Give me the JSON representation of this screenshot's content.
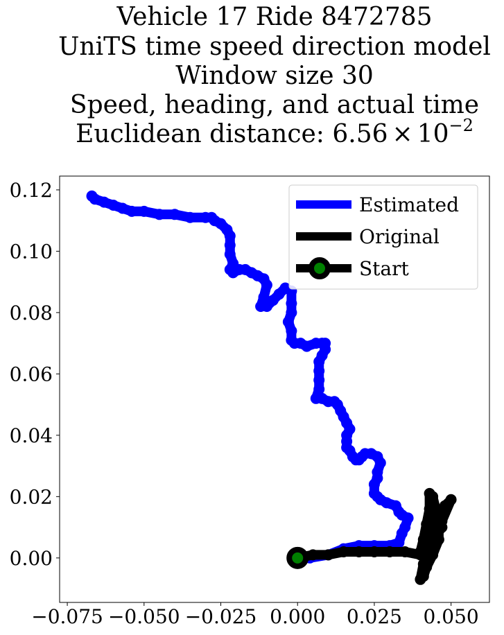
{
  "chart_data": {
    "type": "line",
    "title_lines": [
      "Vehicle 17 Ride 8472785",
      "UniTS time speed direction model",
      "Window size 30",
      "Speed, heading, and actual time"
    ],
    "title_distance_prefix": "Euclidean distance: ",
    "title_distance_mantissa": "6.56",
    "title_distance_times": "×",
    "title_distance_base": "10",
    "title_distance_exponent": "−2",
    "xlim": [
      -0.0775,
      0.0625
    ],
    "ylim": [
      -0.0145,
      0.1245
    ],
    "x_ticks": [
      -0.075,
      -0.05,
      -0.025,
      0.0,
      0.025,
      0.05
    ],
    "x_tick_labels": [
      "−0.075",
      "−0.050",
      "−0.025",
      "0.000",
      "0.025",
      "0.050"
    ],
    "y_ticks": [
      0.0,
      0.02,
      0.04,
      0.06,
      0.08,
      0.1,
      0.12
    ],
    "y_tick_labels": [
      "0.00",
      "0.02",
      "0.04",
      "0.06",
      "0.08",
      "0.10",
      "0.12"
    ],
    "grid": false,
    "legend_position": "top-right",
    "colors": {
      "estimated": "#0000ff",
      "original": "#000000",
      "start_marker": "#000000",
      "start_face": "#008000"
    },
    "series": [
      {
        "name": "Estimated",
        "points": [
          [
            0.0,
            0.0
          ],
          [
            0.004,
            0.0
          ],
          [
            0.01,
            0.001
          ],
          [
            0.015,
            0.003
          ],
          [
            0.02,
            0.004
          ],
          [
            0.025,
            0.004
          ],
          [
            0.03,
            0.004
          ],
          [
            0.033,
            0.005
          ],
          [
            0.034,
            0.008
          ],
          [
            0.035,
            0.01
          ],
          [
            0.036,
            0.013
          ],
          [
            0.034,
            0.014
          ],
          [
            0.033,
            0.015
          ],
          [
            0.032,
            0.017
          ],
          [
            0.029,
            0.018
          ],
          [
            0.027,
            0.019
          ],
          [
            0.026,
            0.02
          ],
          [
            0.025,
            0.021
          ],
          [
            0.025,
            0.024
          ],
          [
            0.026,
            0.026
          ],
          [
            0.026,
            0.028
          ],
          [
            0.027,
            0.031
          ],
          [
            0.026,
            0.033
          ],
          [
            0.024,
            0.034
          ],
          [
            0.022,
            0.034
          ],
          [
            0.021,
            0.033
          ],
          [
            0.02,
            0.032
          ],
          [
            0.019,
            0.032
          ],
          [
            0.018,
            0.033
          ],
          [
            0.017,
            0.035
          ],
          [
            0.016,
            0.036
          ],
          [
            0.016,
            0.038
          ],
          [
            0.016,
            0.04
          ],
          [
            0.017,
            0.042
          ],
          [
            0.016,
            0.044
          ],
          [
            0.015,
            0.046
          ],
          [
            0.014,
            0.048
          ],
          [
            0.013,
            0.05
          ],
          [
            0.012,
            0.051
          ],
          [
            0.01,
            0.051
          ],
          [
            0.008,
            0.052
          ],
          [
            0.006,
            0.052
          ],
          [
            0.007,
            0.055
          ],
          [
            0.007,
            0.058
          ],
          [
            0.007,
            0.061
          ],
          [
            0.007,
            0.064
          ],
          [
            0.008,
            0.066
          ],
          [
            0.009,
            0.068
          ],
          [
            0.009,
            0.07
          ],
          [
            0.008,
            0.07
          ],
          [
            0.006,
            0.07
          ],
          [
            0.003,
            0.069
          ],
          [
            0.001,
            0.07
          ],
          [
            -0.001,
            0.07
          ],
          [
            -0.002,
            0.071
          ],
          [
            -0.002,
            0.074
          ],
          [
            -0.003,
            0.077
          ],
          [
            -0.002,
            0.08
          ],
          [
            -0.002,
            0.083
          ],
          [
            -0.002,
            0.087
          ],
          [
            -0.004,
            0.088
          ],
          [
            -0.006,
            0.086
          ],
          [
            -0.008,
            0.084
          ],
          [
            -0.01,
            0.082
          ],
          [
            -0.012,
            0.082
          ],
          [
            -0.011,
            0.085
          ],
          [
            -0.01,
            0.089
          ],
          [
            -0.011,
            0.091
          ],
          [
            -0.013,
            0.092
          ],
          [
            -0.015,
            0.093
          ],
          [
            -0.017,
            0.094
          ],
          [
            -0.019,
            0.094
          ],
          [
            -0.021,
            0.093
          ],
          [
            -0.022,
            0.094
          ],
          [
            -0.021,
            0.096
          ],
          [
            -0.022,
            0.099
          ],
          [
            -0.022,
            0.102
          ],
          [
            -0.022,
            0.105
          ],
          [
            -0.023,
            0.107
          ],
          [
            -0.025,
            0.109
          ],
          [
            -0.027,
            0.11
          ],
          [
            -0.028,
            0.111
          ],
          [
            -0.03,
            0.111
          ],
          [
            -0.035,
            0.111
          ],
          [
            -0.04,
            0.112
          ],
          [
            -0.045,
            0.112
          ],
          [
            -0.05,
            0.113
          ],
          [
            -0.054,
            0.113
          ],
          [
            -0.057,
            0.114
          ],
          [
            -0.06,
            0.115
          ],
          [
            -0.063,
            0.116
          ],
          [
            -0.066,
            0.117
          ],
          [
            -0.067,
            0.118
          ]
        ]
      },
      {
        "name": "Original",
        "points": [
          [
            0.0,
            0.0
          ],
          [
            0.005,
            0.001
          ],
          [
            0.01,
            0.001
          ],
          [
            0.015,
            0.002
          ],
          [
            0.02,
            0.002
          ],
          [
            0.025,
            0.002
          ],
          [
            0.03,
            0.002
          ],
          [
            0.035,
            0.002
          ],
          [
            0.04,
            0.001
          ],
          [
            0.042,
            0.002
          ],
          [
            0.043,
            0.006
          ],
          [
            0.044,
            0.01
          ],
          [
            0.044,
            0.015
          ],
          [
            0.044,
            0.02
          ],
          [
            0.045,
            0.016
          ],
          [
            0.046,
            0.011
          ],
          [
            0.046,
            0.006
          ],
          [
            0.044,
            0.001
          ],
          [
            0.042,
            -0.003
          ],
          [
            0.041,
            -0.006
          ],
          [
            0.04,
            -0.007
          ],
          [
            0.041,
            -0.002
          ],
          [
            0.043,
            0.003
          ],
          [
            0.045,
            0.008
          ],
          [
            0.047,
            0.012
          ],
          [
            0.05,
            0.019
          ],
          [
            0.048,
            0.017
          ],
          [
            0.045,
            0.012
          ],
          [
            0.042,
            0.006
          ],
          [
            0.041,
            0.002
          ],
          [
            0.042,
            0.008
          ],
          [
            0.043,
            0.014
          ],
          [
            0.043,
            0.021
          ],
          [
            0.043,
            0.016
          ],
          [
            0.042,
            0.011
          ],
          [
            0.041,
            0.006
          ],
          [
            0.04,
            0.002
          ],
          [
            0.043,
            0.004
          ],
          [
            0.045,
            0.007
          ],
          [
            0.047,
            0.01
          ]
        ]
      }
    ],
    "start_label": "Start",
    "start_point": [
      0.0,
      0.0
    ]
  }
}
